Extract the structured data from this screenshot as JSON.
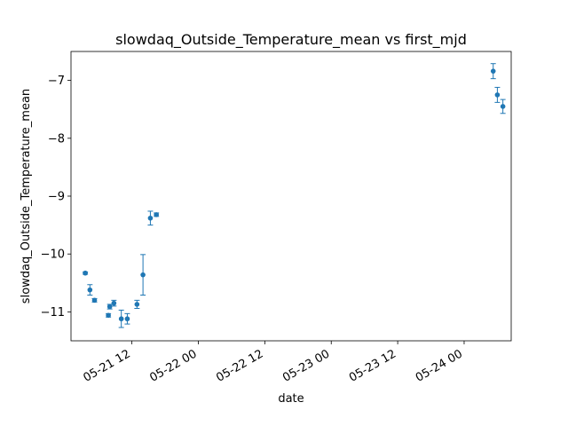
{
  "chart_data": {
    "type": "scatter",
    "title": "slowdaq_Outside_Temperature_mean vs first_mjd",
    "xlabel": "date",
    "ylabel": "slowdaq_Outside_Temperature_mean",
    "x_is_date": true,
    "xlim": [
      "2021-05-21T01:00",
      "2021-05-24T08:30"
    ],
    "ylim": [
      -11.5,
      -6.5
    ],
    "x_ticks": [
      {
        "value": "2021-05-21T12:00",
        "label": "05-21 12"
      },
      {
        "value": "2021-05-22T00:00",
        "label": "05-22 00"
      },
      {
        "value": "2021-05-22T12:00",
        "label": "05-22 12"
      },
      {
        "value": "2021-05-23T00:00",
        "label": "05-23 00"
      },
      {
        "value": "2021-05-23T12:00",
        "label": "05-23 12"
      },
      {
        "value": "2021-05-24T00:00",
        "label": "05-24 00"
      }
    ],
    "y_ticks": [
      {
        "value": -11,
        "label": "−11"
      },
      {
        "value": -10,
        "label": "−10"
      },
      {
        "value": -9,
        "label": "−9"
      },
      {
        "value": -8,
        "label": "−8"
      },
      {
        "value": -7,
        "label": "−7"
      }
    ],
    "grid": false,
    "series": [
      {
        "color": "#1f77b4",
        "marker": "circle",
        "error_bars": true,
        "points": [
          {
            "x": "2021-05-21T03:35",
            "y": -10.33,
            "err": 0.02
          },
          {
            "x": "2021-05-21T04:25",
            "y": -10.62,
            "err": 0.09
          },
          {
            "x": "2021-05-21T05:15",
            "y": -10.8,
            "err": 0.03
          },
          {
            "x": "2021-05-21T07:45",
            "y": -11.06,
            "err": 0.03
          },
          {
            "x": "2021-05-21T08:00",
            "y": -10.91,
            "err": 0.04
          },
          {
            "x": "2021-05-21T08:45",
            "y": -10.85,
            "err": 0.05
          },
          {
            "x": "2021-05-21T10:05",
            "y": -11.12,
            "err": 0.15
          },
          {
            "x": "2021-05-21T11:10",
            "y": -11.12,
            "err": 0.09
          },
          {
            "x": "2021-05-21T12:55",
            "y": -10.87,
            "err": 0.07
          },
          {
            "x": "2021-05-21T14:00",
            "y": -10.36,
            "err": 0.35
          },
          {
            "x": "2021-05-21T15:20",
            "y": -9.38,
            "err": 0.12
          },
          {
            "x": "2021-05-21T16:25",
            "y": -9.32,
            "err": 0.03
          },
          {
            "x": "2021-05-24T05:15",
            "y": -6.84,
            "err": 0.13
          },
          {
            "x": "2021-05-24T06:00",
            "y": -7.25,
            "err": 0.13
          },
          {
            "x": "2021-05-24T07:00",
            "y": -7.45,
            "err": 0.12
          }
        ]
      }
    ]
  }
}
